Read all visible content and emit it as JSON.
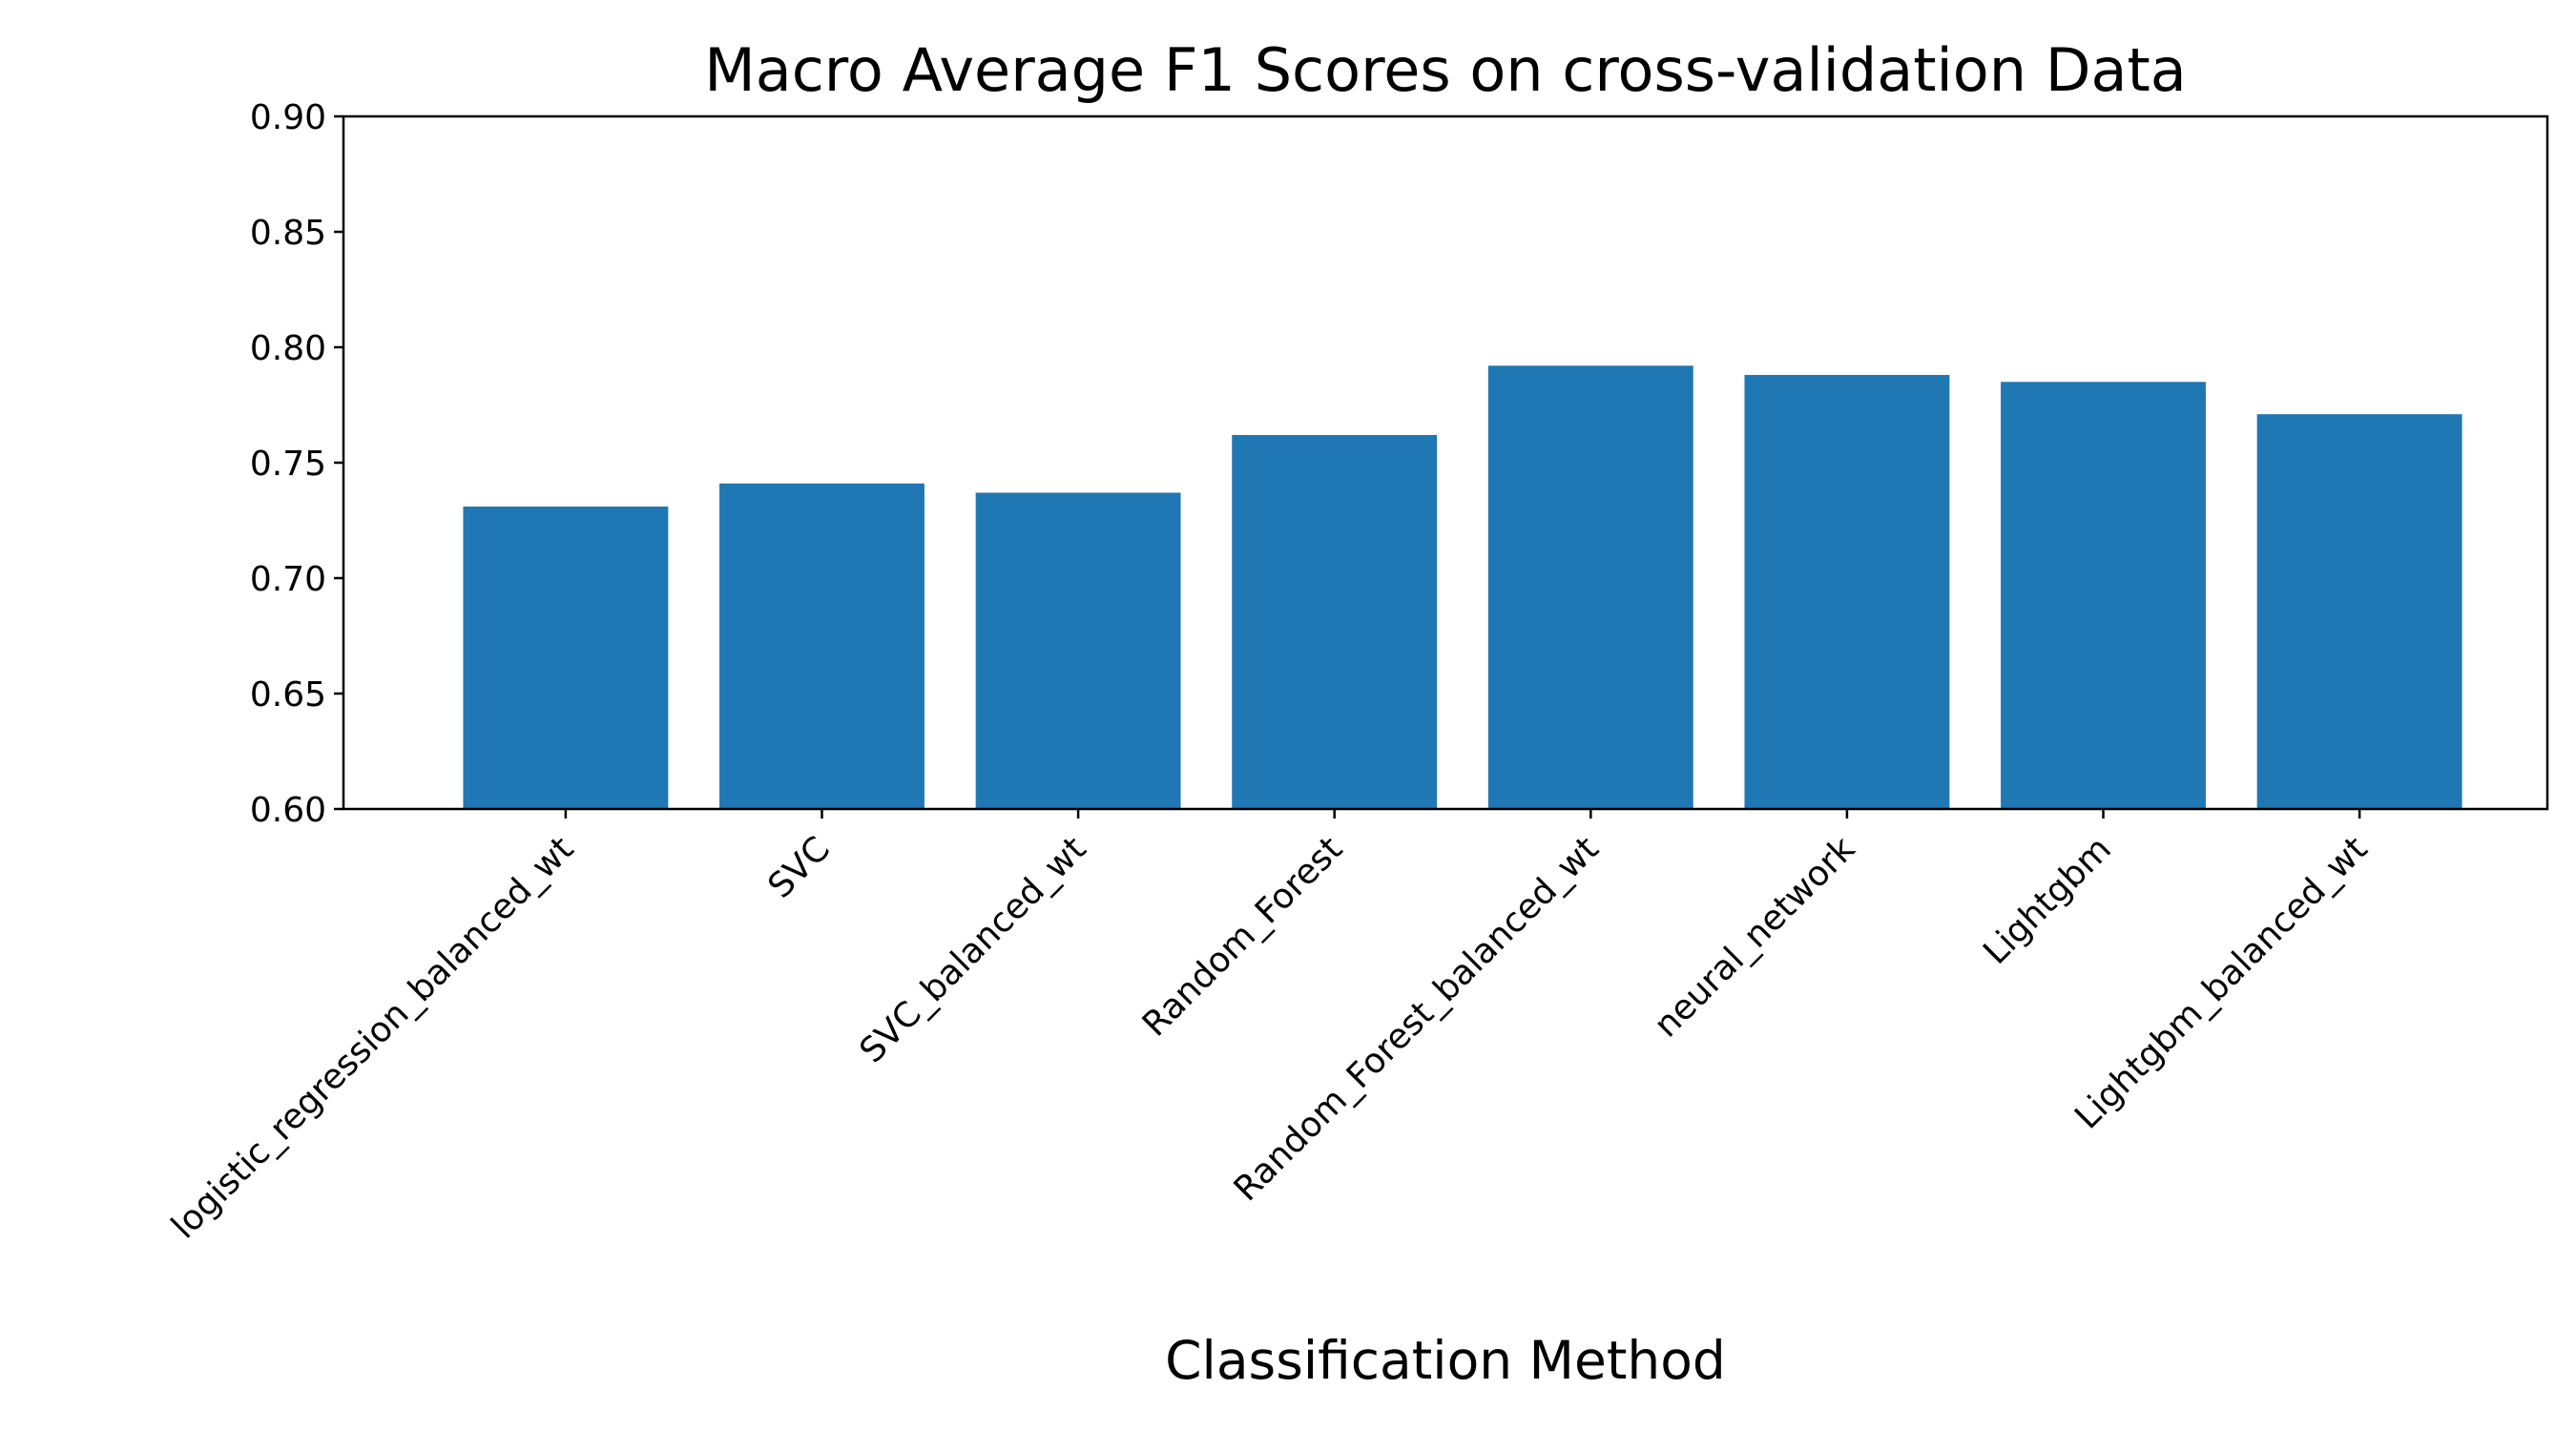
{
  "chart_data": {
    "type": "bar",
    "title": "Macro Average F1 Scores on cross-validation Data",
    "xlabel": "Classification Method",
    "ylabel": "",
    "categories": [
      "logistic_regression_balanced_wt",
      "SVC",
      "SVC_balanced_wt",
      "Random_Forest",
      "Random_Forest_balanced_wt",
      "neural_network",
      "Lightgbm",
      "Lightgbm_balanced_wt"
    ],
    "values": [
      0.731,
      0.741,
      0.737,
      0.762,
      0.792,
      0.788,
      0.785,
      0.771
    ],
    "ylim": [
      0.6,
      0.9
    ],
    "yticks": [
      "0.60",
      "0.65",
      "0.70",
      "0.75",
      "0.80",
      "0.85",
      "0.90"
    ],
    "bar_color": "#1f77b4",
    "grid": false,
    "legend": "none"
  }
}
